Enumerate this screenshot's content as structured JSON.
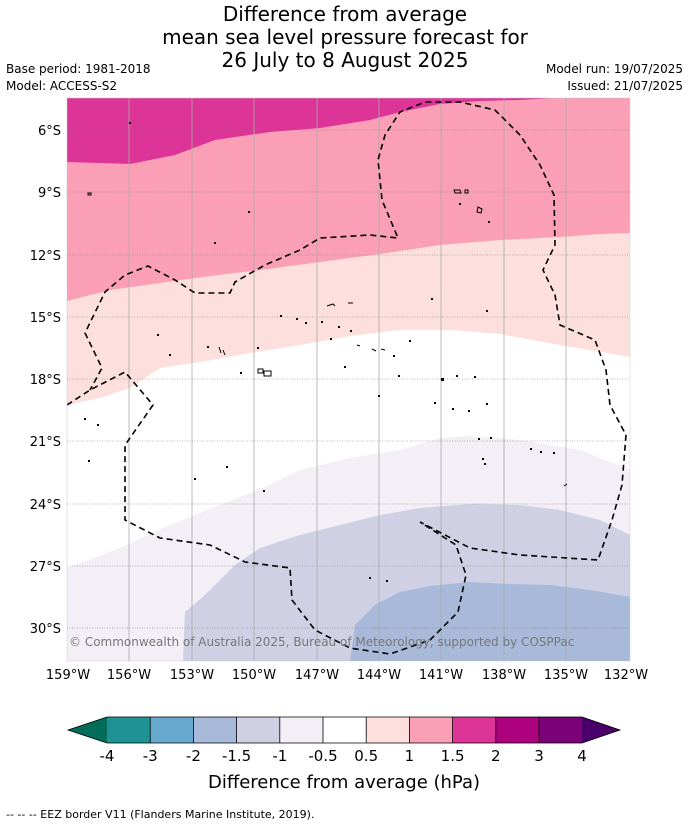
{
  "header": {
    "title_lines": [
      "Difference from average",
      "mean sea level pressure forecast for",
      "26 July to 8 August 2025"
    ],
    "base_period": "Base period: 1981-2018",
    "model": "Model: ACCESS-S2",
    "model_run": "Model run: 19/07/2025",
    "issued": "Issued: 21/07/2025"
  },
  "map": {
    "lat_labels": [
      "6°S",
      "9°S",
      "12°S",
      "15°S",
      "18°S",
      "21°S",
      "24°S",
      "27°S",
      "30°S"
    ],
    "lon_labels": [
      "159°W",
      "156°W",
      "153°W",
      "150°W",
      "147°W",
      "144°W",
      "141°W",
      "138°W",
      "135°W",
      "132°W"
    ],
    "copyright": "© Commonwealth of Australia 2025, Bureau of Meteorology, supported by COSPPac",
    "band_colors": {
      "pos_1_5_to_2": "#dd3497",
      "pos_1_to_1_5": "#fa9fb5",
      "pos_0_5_to_1": "#fde0dd",
      "neutral": "#ffffff",
      "neg_0_5_to_1": "#f4eef6",
      "neg_1_to_1_5": "#cfd0e3",
      "neg_1_5_to_2": "#a8b9d9"
    }
  },
  "colorbar": {
    "ticks": [
      "-4",
      "-3",
      "-2",
      "-1.5",
      "-1",
      "-0.5",
      "0.5",
      "1",
      "1.5",
      "2",
      "3",
      "4"
    ],
    "colors": [
      "#1f9393",
      "#67a9cf",
      "#a8b9d9",
      "#cfd0e3",
      "#f4eef6",
      "#ffffff",
      "#fde0dd",
      "#fa9fb5",
      "#dd3497",
      "#ae017e",
      "#7a0177"
    ],
    "under_color": "#016c59",
    "over_color": "#49006a",
    "label": "Difference from average (hPa)"
  },
  "footnote": "--  --  -- EEZ border V11 (Flanders Marine Institute, 2019)."
}
